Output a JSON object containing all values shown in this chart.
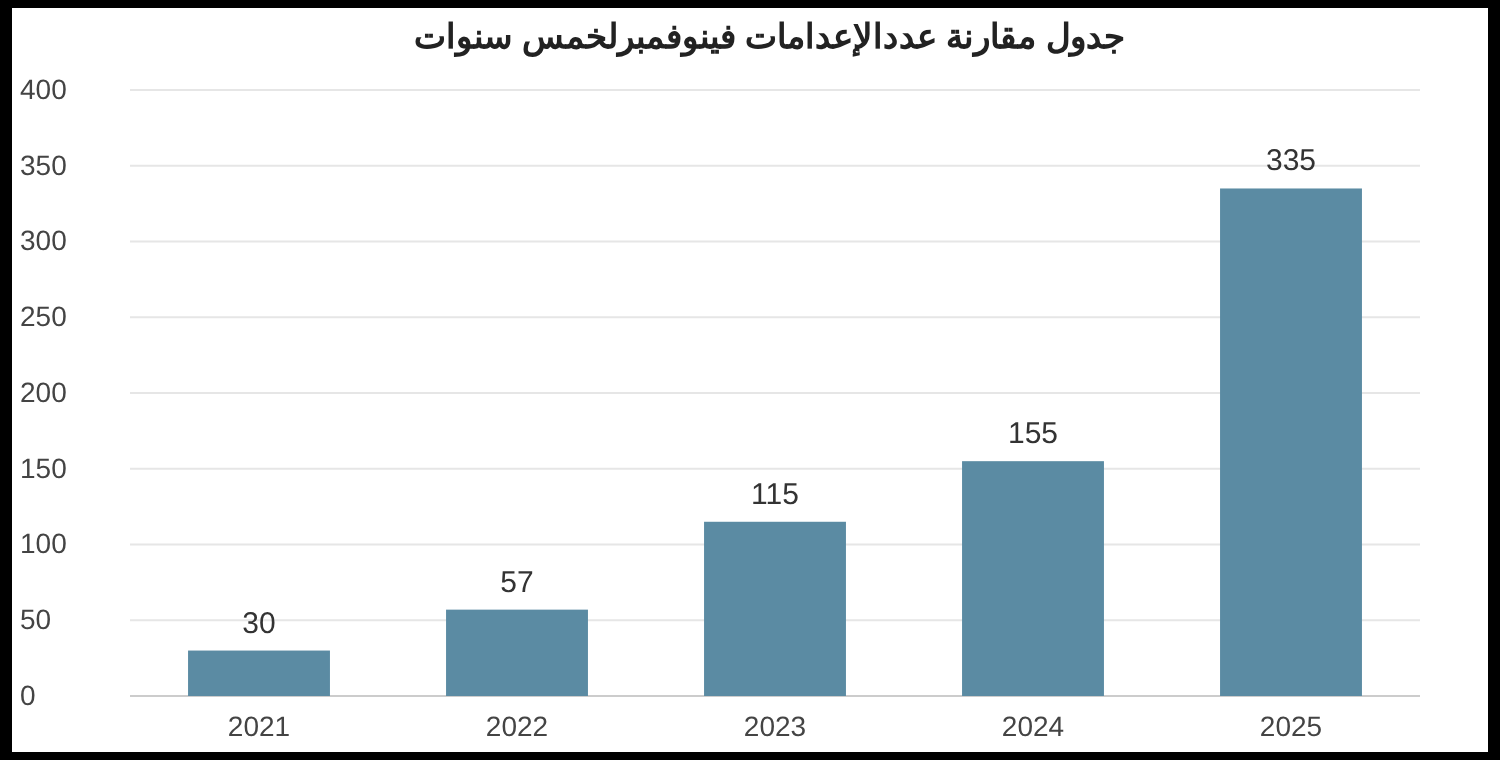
{
  "chart_data": {
    "type": "bar",
    "title": "جدول مقارنة عددالإعدامات فينوفمبرلخمس سنوات",
    "categories": [
      "2021",
      "2022",
      "2023",
      "2024",
      "2025"
    ],
    "values": [
      30,
      57,
      115,
      155,
      335
    ],
    "color": "#5b8ba3",
    "ylim": [
      0,
      400
    ],
    "yticks": [
      0,
      50,
      100,
      150,
      200,
      250,
      300,
      350,
      400
    ],
    "grid": "y",
    "data_labels": true
  }
}
